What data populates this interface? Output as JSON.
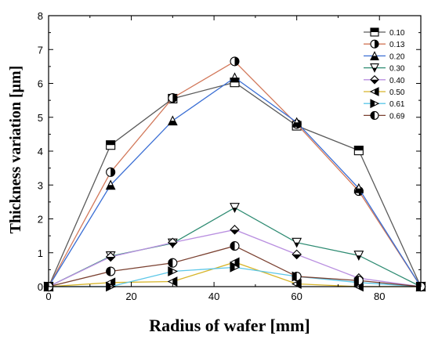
{
  "chart_data": {
    "type": "line",
    "xlabel": "Radius of wafer [mm]",
    "ylabel": "Thickness variation [μm]",
    "xlim": [
      0,
      90
    ],
    "ylim": [
      0,
      8
    ],
    "xticks": [
      0,
      20,
      40,
      60,
      80
    ],
    "yticks": [
      0,
      1,
      2,
      3,
      4,
      5,
      6,
      7,
      8
    ],
    "grid": false,
    "legend_position": "top-right",
    "x": [
      0,
      15,
      30,
      45,
      60,
      75,
      90
    ],
    "series": [
      {
        "name": "0.10",
        "marker": "square-top-half",
        "color": "#5a5a5a",
        "values": [
          0,
          4.18,
          5.55,
          6.03,
          4.75,
          4.02,
          0
        ]
      },
      {
        "name": "0.13",
        "marker": "circle-right-half",
        "color": "#d2785a",
        "values": [
          0,
          3.38,
          5.57,
          6.65,
          4.8,
          2.82,
          0
        ]
      },
      {
        "name": "0.20",
        "marker": "triangle-up-bottom-half",
        "color": "#3a6ed4",
        "values": [
          0,
          3.0,
          4.9,
          6.17,
          4.85,
          2.9,
          0
        ]
      },
      {
        "name": "0.30",
        "marker": "triangle-down-bottom-half",
        "color": "#2e8b72",
        "values": [
          0,
          0.9,
          1.28,
          2.33,
          1.3,
          0.92,
          0
        ]
      },
      {
        "name": "0.40",
        "marker": "diamond-bottom-half",
        "color": "#b98fe0",
        "values": [
          0,
          0.88,
          1.3,
          1.68,
          0.95,
          0.25,
          0
        ]
      },
      {
        "name": "0.50",
        "marker": "triangle-left-half",
        "color": "#d7b52a",
        "values": [
          0,
          0.12,
          0.15,
          0.72,
          0.08,
          0.0,
          0
        ]
      },
      {
        "name": "0.61",
        "marker": "triangle-right-half",
        "color": "#5cc7e8",
        "values": [
          0,
          0.0,
          0.45,
          0.57,
          0.3,
          0.12,
          0
        ]
      },
      {
        "name": "0.69",
        "marker": "circle-left-half",
        "color": "#7a4030",
        "values": [
          0,
          0.45,
          0.7,
          1.2,
          0.3,
          0.18,
          0
        ]
      }
    ]
  }
}
